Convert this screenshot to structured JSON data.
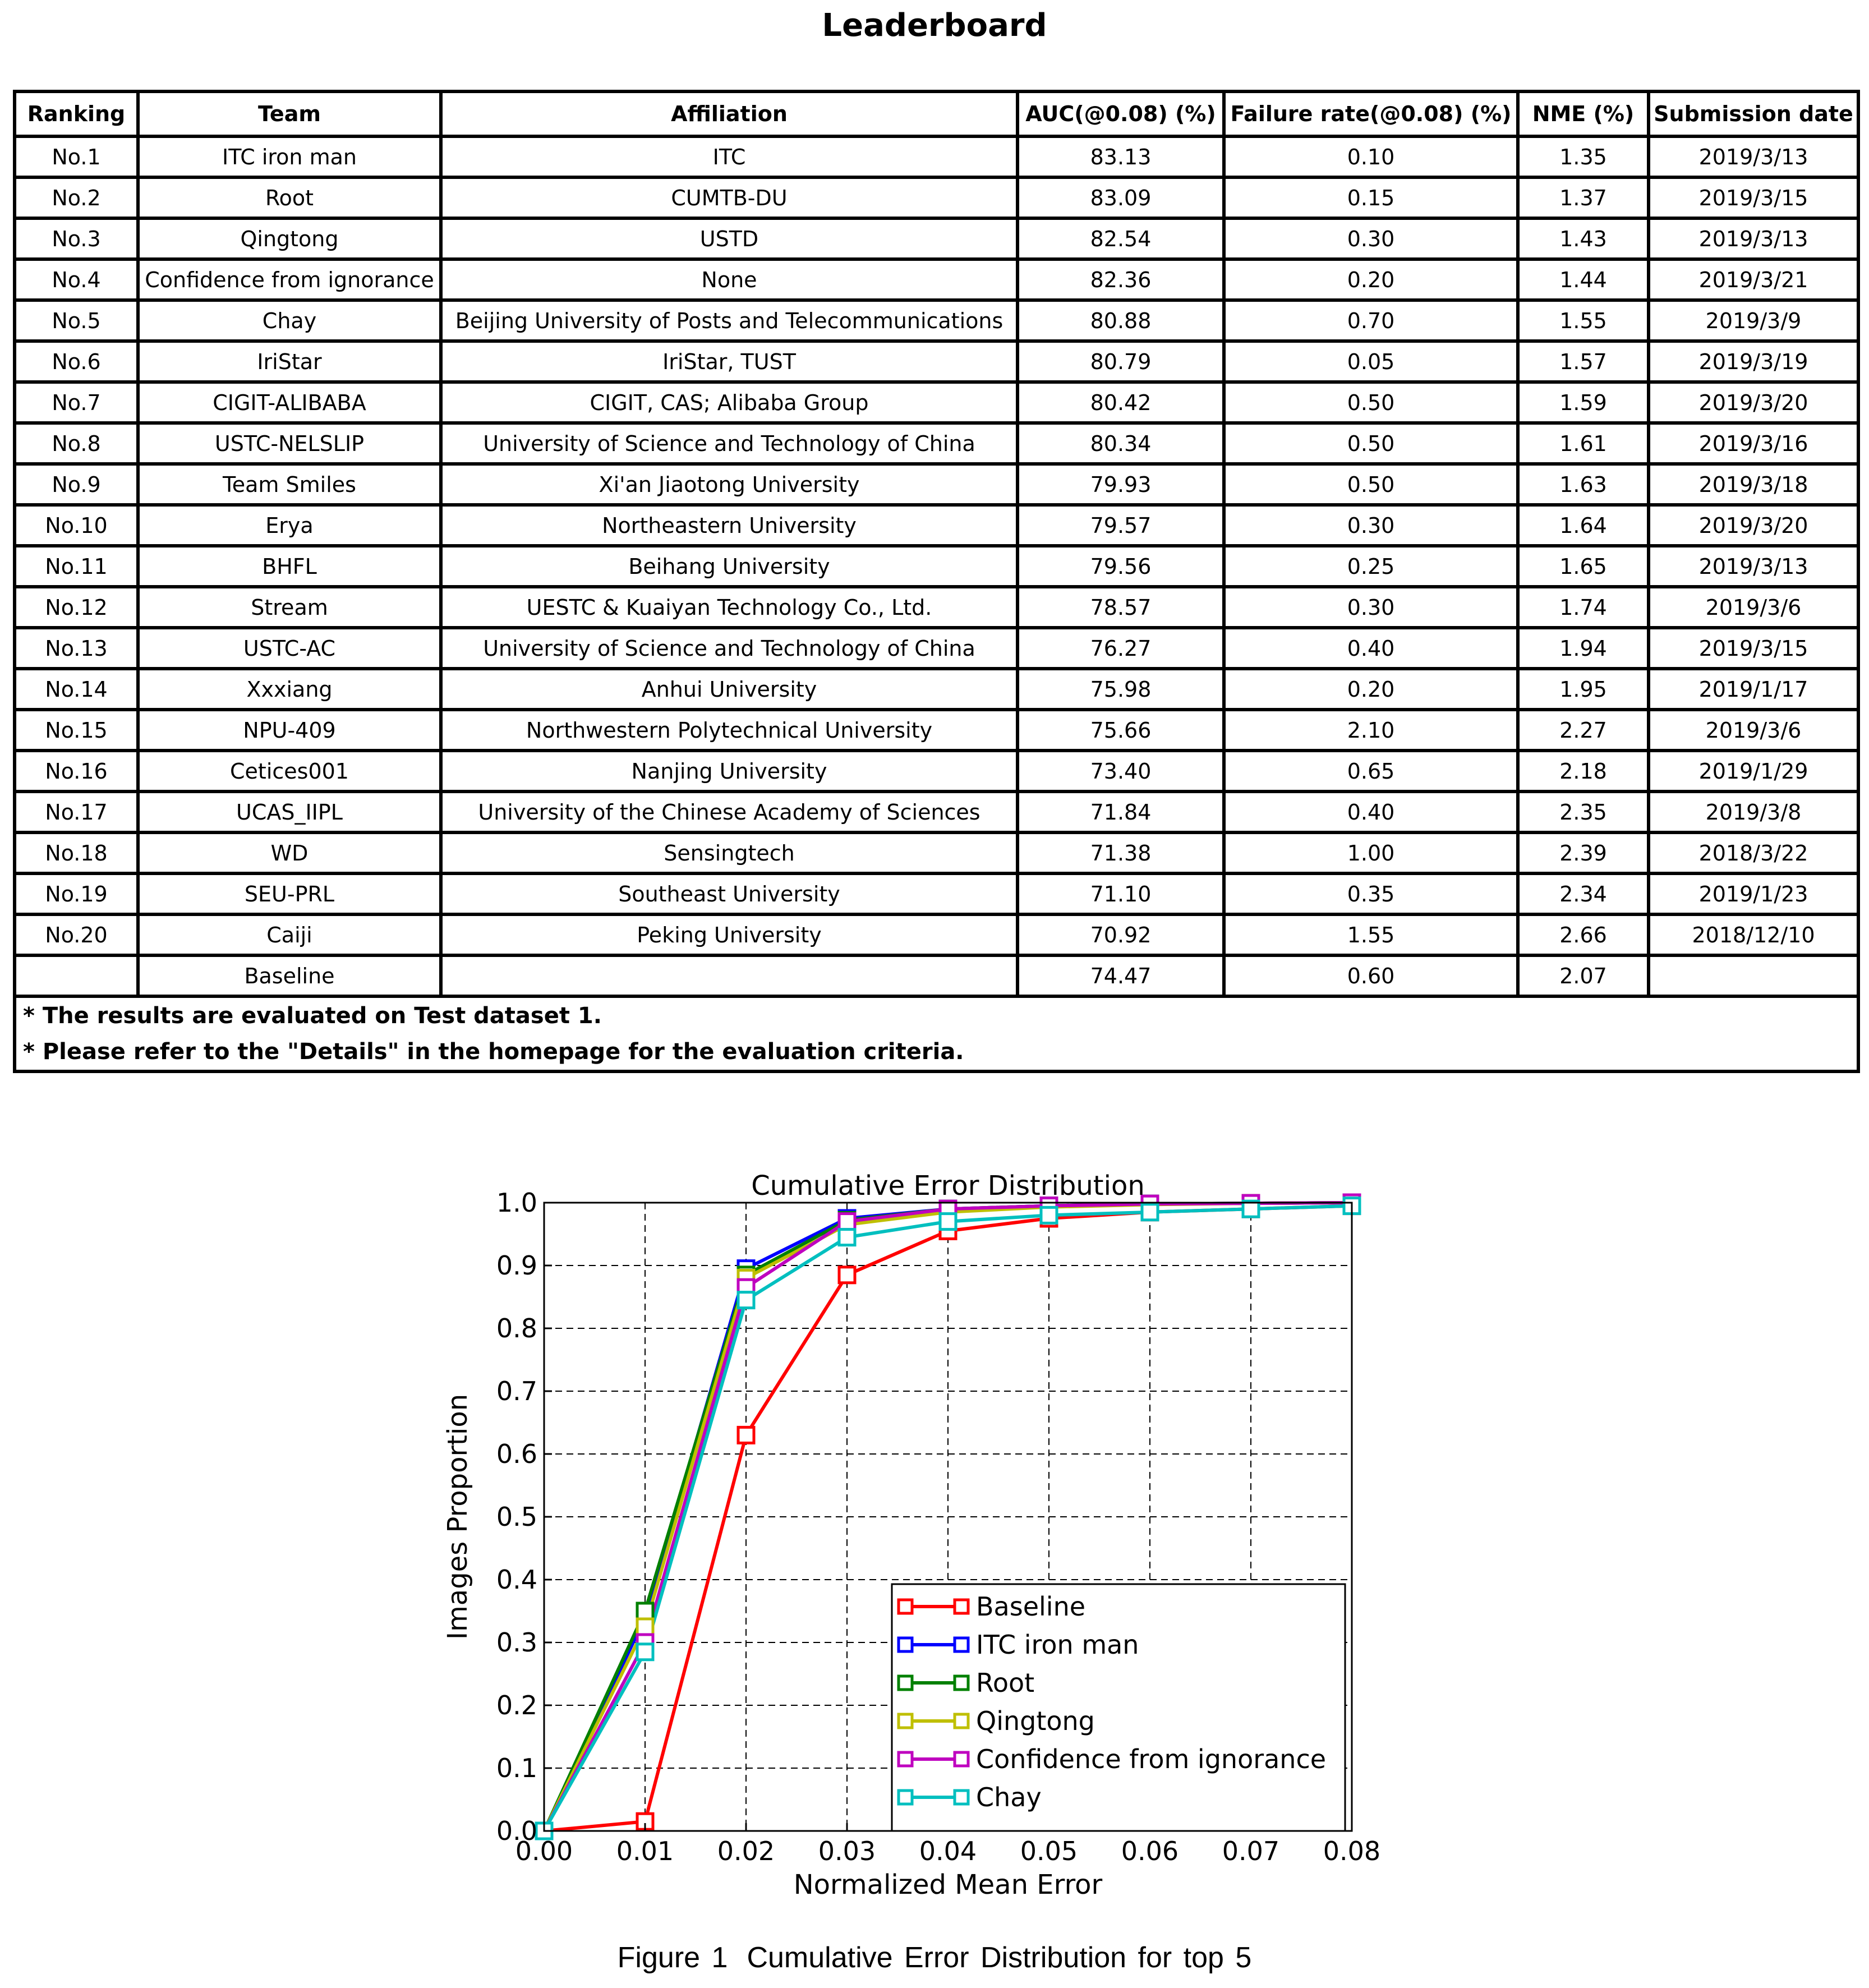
{
  "title": "Leaderboard",
  "table": {
    "headers": [
      "Ranking",
      "Team",
      "Affiliation",
      "AUC(@0.08) (%)",
      "Failure rate(@0.08) (%)",
      "NME (%)",
      "Submission date"
    ],
    "rows": [
      [
        "No.1",
        "ITC iron man",
        "ITC",
        "83.13",
        "0.10",
        "1.35",
        "2019/3/13"
      ],
      [
        "No.2",
        "Root",
        "CUMTB-DU",
        "83.09",
        "0.15",
        "1.37",
        "2019/3/15"
      ],
      [
        "No.3",
        "Qingtong",
        "USTD",
        "82.54",
        "0.30",
        "1.43",
        "2019/3/13"
      ],
      [
        "No.4",
        "Confidence from ignorance",
        "None",
        "82.36",
        "0.20",
        "1.44",
        "2019/3/21"
      ],
      [
        "No.5",
        "Chay",
        "Beijing University of Posts and Telecommunications",
        "80.88",
        "0.70",
        "1.55",
        "2019/3/9"
      ],
      [
        "No.6",
        "IriStar",
        "IriStar, TUST",
        "80.79",
        "0.05",
        "1.57",
        "2019/3/19"
      ],
      [
        "No.7",
        "CIGIT-ALIBABA",
        "CIGIT, CAS; Alibaba Group",
        "80.42",
        "0.50",
        "1.59",
        "2019/3/20"
      ],
      [
        "No.8",
        "USTC-NELSLIP",
        "University of Science and Technology of China",
        "80.34",
        "0.50",
        "1.61",
        "2019/3/16"
      ],
      [
        "No.9",
        "Team Smiles",
        "Xi'an Jiaotong University",
        "79.93",
        "0.50",
        "1.63",
        "2019/3/18"
      ],
      [
        "No.10",
        "Erya",
        "Northeastern University",
        "79.57",
        "0.30",
        "1.64",
        "2019/3/20"
      ],
      [
        "No.11",
        "BHFL",
        "Beihang University",
        "79.56",
        "0.25",
        "1.65",
        "2019/3/13"
      ],
      [
        "No.12",
        "Stream",
        "UESTC & Kuaiyan Technology Co., Ltd.",
        "78.57",
        "0.30",
        "1.74",
        "2019/3/6"
      ],
      [
        "No.13",
        "USTC-AC",
        "University of Science and Technology of China",
        "76.27",
        "0.40",
        "1.94",
        "2019/3/15"
      ],
      [
        "No.14",
        "Xxxiang",
        "Anhui University",
        "75.98",
        "0.20",
        "1.95",
        "2019/1/17"
      ],
      [
        "No.15",
        "NPU-409",
        "Northwestern Polytechnical University",
        "75.66",
        "2.10",
        "2.27",
        "2019/3/6"
      ],
      [
        "No.16",
        "Cetices001",
        "Nanjing University",
        "73.40",
        "0.65",
        "2.18",
        "2019/1/29"
      ],
      [
        "No.17",
        "UCAS_IIPL",
        "University of the Chinese Academy of Sciences",
        "71.84",
        "0.40",
        "2.35",
        "2019/3/8"
      ],
      [
        "No.18",
        "WD",
        "Sensingtech",
        "71.38",
        "1.00",
        "2.39",
        "2018/3/22"
      ],
      [
        "No.19",
        "SEU-PRL",
        "Southeast University",
        "71.10",
        "0.35",
        "2.34",
        "2019/1/23"
      ],
      [
        "No.20",
        "Caiji",
        "Peking University",
        "70.92",
        "1.55",
        "2.66",
        "2018/12/10"
      ],
      [
        "",
        "Baseline",
        "",
        "74.47",
        "0.60",
        "2.07",
        ""
      ]
    ],
    "notes": [
      "* The results are evaluated on Test dataset 1.",
      "* Please refer to the \"Details\" in the homepage for the evaluation criteria."
    ]
  },
  "chart_data": {
    "type": "line",
    "title": "Cumulative Error Distribution",
    "xlabel": "Normalized Mean Error",
    "ylabel": "Images Proportion",
    "xlim": [
      0,
      0.08
    ],
    "ylim": [
      0,
      1.0
    ],
    "xticks": [
      "0.00",
      "0.01",
      "0.02",
      "0.03",
      "0.04",
      "0.05",
      "0.06",
      "0.07",
      "0.08"
    ],
    "yticks": [
      "0.0",
      "0.1",
      "0.2",
      "0.3",
      "0.4",
      "0.5",
      "0.6",
      "0.7",
      "0.8",
      "0.9",
      "1.0"
    ],
    "grid": true,
    "legend_position": "lower-right",
    "marker": "open-square",
    "x": [
      0.0,
      0.01,
      0.02,
      0.03,
      0.04,
      0.05,
      0.06,
      0.07,
      0.08
    ],
    "series": [
      {
        "name": "Baseline",
        "color": "#ff0000",
        "values": [
          0.0,
          0.015,
          0.63,
          0.885,
          0.955,
          0.975,
          0.985,
          0.99,
          0.995
        ]
      },
      {
        "name": "ITC iron man",
        "color": "#0000ff",
        "values": [
          0.0,
          0.34,
          0.895,
          0.975,
          0.99,
          0.995,
          0.998,
          0.999,
          1.0
        ]
      },
      {
        "name": "Root",
        "color": "#008000",
        "values": [
          0.0,
          0.35,
          0.885,
          0.972,
          0.99,
          0.995,
          0.998,
          0.999,
          1.0
        ]
      },
      {
        "name": "Qingtong",
        "color": "#bfbf00",
        "values": [
          0.0,
          0.325,
          0.88,
          0.965,
          0.985,
          0.993,
          0.997,
          0.999,
          1.0
        ]
      },
      {
        "name": "Confidence from ignorance",
        "color": "#bf00bf",
        "values": [
          0.0,
          0.3,
          0.865,
          0.97,
          0.99,
          0.995,
          0.998,
          0.999,
          1.0
        ]
      },
      {
        "name": "Chay",
        "color": "#00bfbf",
        "values": [
          0.0,
          0.285,
          0.845,
          0.945,
          0.97,
          0.98,
          0.985,
          0.99,
          0.995
        ]
      }
    ]
  },
  "caption": {
    "label": "Figure 1",
    "text": "Cumulative Error Distribution for top 5"
  }
}
